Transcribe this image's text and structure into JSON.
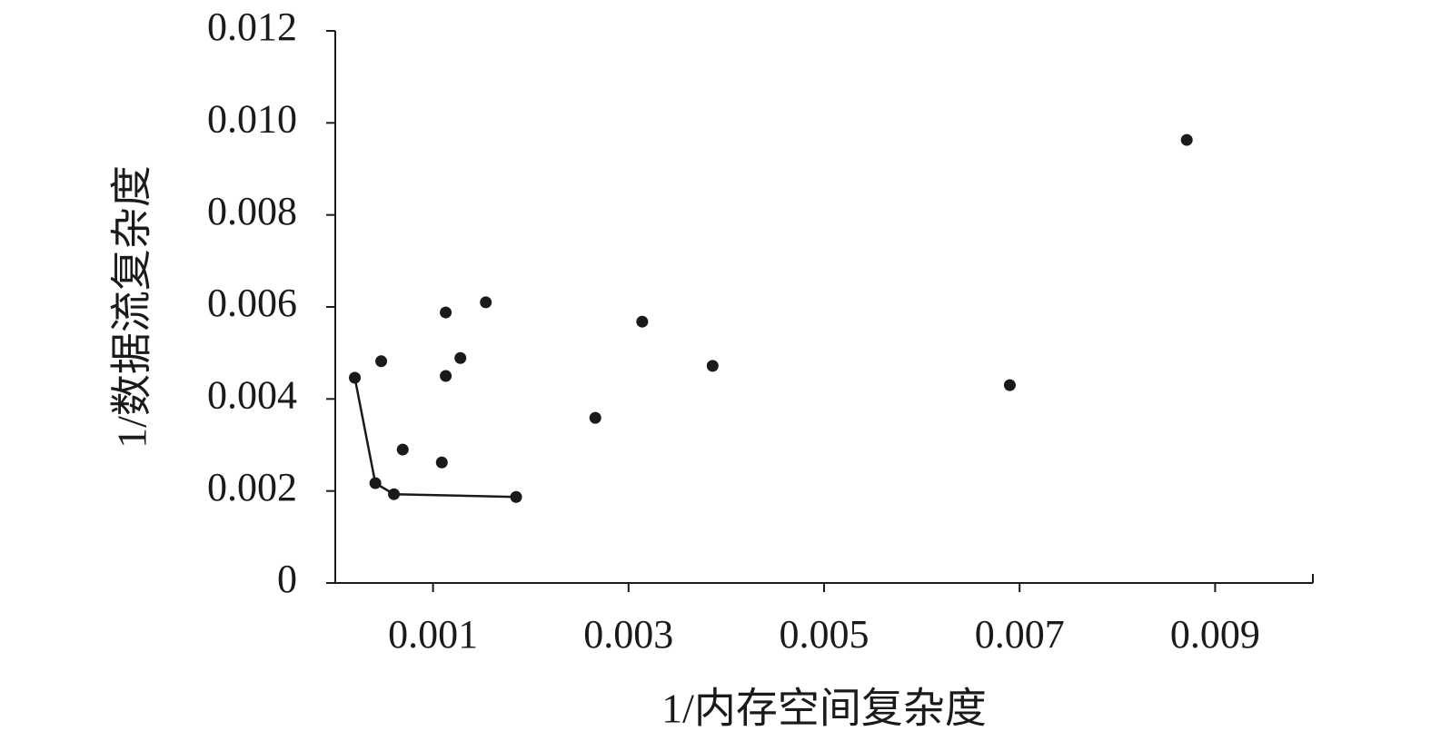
{
  "chart_data": {
    "type": "scatter",
    "x_label": "1/内存空间复杂度",
    "y_label": "1/数据流复杂度",
    "xlim": [
      0,
      0.01
    ],
    "xticks": [
      0.001,
      0.003,
      0.005,
      0.007,
      0.009
    ],
    "ylim": [
      0,
      0.012
    ],
    "yticks": [
      0,
      0.002,
      0.004,
      0.006,
      0.008,
      {
        "value": 0.01,
        "label": "0.010"
      },
      0.012
    ],
    "series": [
      {
        "color": "#1a1a1a",
        "line": false,
        "x": [
          0.00047,
          0.00069,
          0.00109,
          0.00113,
          0.00113,
          0.00128,
          0.00154,
          0.00266,
          0.00314,
          0.00386,
          0.0069,
          0.00871
        ],
        "values": [
          0.00482,
          0.0029,
          0.00262,
          0.00588,
          0.0045,
          0.00489,
          0.0061,
          0.00359,
          0.00568,
          0.00472,
          0.0043,
          0.00963
        ]
      },
      {
        "color": "#1a1a1a",
        "line": true,
        "x": [
          0.0002,
          0.00041,
          0.0006,
          0.00185
        ],
        "values": [
          0.00446,
          0.00217,
          0.00193,
          0.00187
        ]
      }
    ]
  }
}
